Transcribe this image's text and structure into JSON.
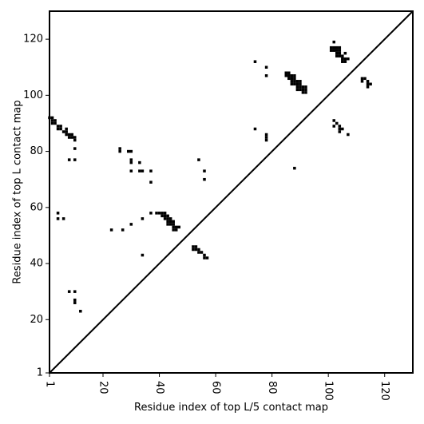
{
  "chart_data": {
    "type": "scatter",
    "title": "",
    "xlabel": "Residue index of top L/5 contact map",
    "ylabel": "Residue index of top L contact map",
    "xlim": [
      1,
      130
    ],
    "ylim": [
      1,
      130
    ],
    "xticks": [
      1,
      20,
      40,
      60,
      80,
      100,
      120
    ],
    "yticks": [
      1,
      20,
      40,
      60,
      80,
      100,
      120
    ],
    "diagonal": true,
    "grid": false,
    "legend": "none",
    "colors": {
      "points": "#000000",
      "axes": "#000000",
      "background": "#ffffff"
    },
    "series": [
      {
        "marker": "square",
        "points": [
          [
            1,
            92
          ],
          [
            2,
            92
          ],
          [
            2,
            91
          ],
          [
            3,
            91
          ],
          [
            3,
            90
          ],
          [
            2,
            90
          ],
          [
            4,
            89
          ],
          [
            4,
            88
          ],
          [
            5,
            89
          ],
          [
            5,
            88
          ],
          [
            6,
            87
          ],
          [
            7,
            87
          ],
          [
            7,
            88
          ],
          [
            7,
            86
          ],
          [
            8,
            86
          ],
          [
            8,
            85
          ],
          [
            9,
            86
          ],
          [
            9,
            85
          ],
          [
            10,
            85
          ],
          [
            10,
            84
          ],
          [
            10,
            81
          ],
          [
            8,
            77
          ],
          [
            10,
            77
          ],
          [
            26,
            81
          ],
          [
            26,
            80
          ],
          [
            29,
            80
          ],
          [
            30,
            80
          ],
          [
            30,
            77
          ],
          [
            30,
            76
          ],
          [
            30,
            73
          ],
          [
            33,
            76
          ],
          [
            33,
            73
          ],
          [
            34,
            73
          ],
          [
            37,
            73
          ],
          [
            37,
            69
          ],
          [
            56,
            73
          ],
          [
            54,
            77
          ],
          [
            56,
            70
          ],
          [
            4,
            58
          ],
          [
            4,
            56
          ],
          [
            6,
            56
          ],
          [
            23,
            52
          ],
          [
            27,
            52
          ],
          [
            30,
            54
          ],
          [
            34,
            56
          ],
          [
            34,
            43
          ],
          [
            8,
            30
          ],
          [
            10,
            30
          ],
          [
            10,
            27
          ],
          [
            10,
            26
          ],
          [
            12,
            23
          ],
          [
            37,
            58
          ],
          [
            39,
            58
          ],
          [
            40,
            58
          ],
          [
            41,
            58
          ],
          [
            42,
            58
          ],
          [
            42,
            57
          ],
          [
            41,
            57
          ],
          [
            43,
            57
          ],
          [
            42,
            56
          ],
          [
            43,
            56
          ],
          [
            44,
            56
          ],
          [
            43,
            55
          ],
          [
            44,
            55
          ],
          [
            45,
            55
          ],
          [
            43,
            54
          ],
          [
            44,
            54
          ],
          [
            45,
            54
          ],
          [
            45,
            53
          ],
          [
            46,
            53
          ],
          [
            47,
            53
          ],
          [
            45,
            52
          ],
          [
            46,
            52
          ],
          [
            52,
            46
          ],
          [
            53,
            46
          ],
          [
            52,
            45
          ],
          [
            53,
            45
          ],
          [
            54,
            45
          ],
          [
            54,
            44
          ],
          [
            55,
            44
          ],
          [
            56,
            43
          ],
          [
            56,
            42
          ],
          [
            57,
            42
          ],
          [
            74,
            112
          ],
          [
            78,
            110
          ],
          [
            78,
            107
          ],
          [
            74,
            88
          ],
          [
            78,
            86
          ],
          [
            78,
            85
          ],
          [
            78,
            84
          ],
          [
            88,
            74
          ],
          [
            85,
            108
          ],
          [
            86,
            108
          ],
          [
            85,
            107
          ],
          [
            86,
            107
          ],
          [
            86,
            106
          ],
          [
            87,
            107
          ],
          [
            88,
            107
          ],
          [
            87,
            106
          ],
          [
            88,
            106
          ],
          [
            87,
            105
          ],
          [
            88,
            105
          ],
          [
            89,
            105
          ],
          [
            90,
            105
          ],
          [
            87,
            104
          ],
          [
            88,
            104
          ],
          [
            89,
            104
          ],
          [
            90,
            104
          ],
          [
            89,
            103
          ],
          [
            90,
            103
          ],
          [
            91,
            103
          ],
          [
            92,
            103
          ],
          [
            89,
            102
          ],
          [
            90,
            102
          ],
          [
            91,
            102
          ],
          [
            92,
            102
          ],
          [
            91,
            101
          ],
          [
            92,
            101
          ],
          [
            102,
            119
          ],
          [
            101,
            117
          ],
          [
            102,
            117
          ],
          [
            103,
            117
          ],
          [
            104,
            117
          ],
          [
            101,
            116
          ],
          [
            102,
            116
          ],
          [
            103,
            116
          ],
          [
            104,
            116
          ],
          [
            103,
            115
          ],
          [
            104,
            115
          ],
          [
            106,
            115
          ],
          [
            103,
            114
          ],
          [
            104,
            114
          ],
          [
            105,
            114
          ],
          [
            105,
            113
          ],
          [
            106,
            113
          ],
          [
            107,
            113
          ],
          [
            105,
            112
          ],
          [
            106,
            112
          ],
          [
            112,
            106
          ],
          [
            113,
            106
          ],
          [
            112,
            105
          ],
          [
            114,
            105
          ],
          [
            114,
            104
          ],
          [
            115,
            104
          ],
          [
            114,
            103
          ],
          [
            102,
            91
          ],
          [
            103,
            90
          ],
          [
            102,
            89
          ],
          [
            104,
            89
          ],
          [
            104,
            88
          ],
          [
            105,
            88
          ],
          [
            104,
            87
          ],
          [
            107,
            86
          ]
        ]
      }
    ]
  }
}
